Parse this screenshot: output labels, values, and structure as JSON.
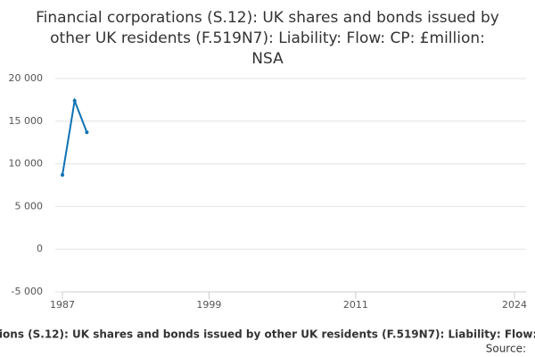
{
  "chart_data": {
    "type": "line",
    "title": "Financial corporations (S.12): UK shares and bonds issued by other UK residents (F.519N7): Liability: Flow: CP: £million: NSA",
    "x": [
      1987,
      1988,
      1989
    ],
    "series": [
      {
        "name": "Financial corporations (S.12): UK shares and bonds issued by other UK residents (F.519N7): Liability: Flow: CP: £million: NSA",
        "color": "#0f73b3",
        "values": [
          8700,
          17400,
          13700
        ]
      }
    ],
    "xlim": [
      1987,
      2024
    ],
    "xticks": [
      1987,
      1999,
      2011,
      2024
    ],
    "ylim": [
      -5000,
      20000
    ],
    "yticks": [
      {
        "value": -5000,
        "label": "-5 000"
      },
      0,
      {
        "value": 5000,
        "label": "5 000"
      },
      {
        "value": 10000,
        "label": "10 000"
      },
      {
        "value": 15000,
        "label": "15 000"
      },
      {
        "value": 20000,
        "label": "20 000"
      }
    ],
    "grid": true,
    "source": "Source:"
  }
}
